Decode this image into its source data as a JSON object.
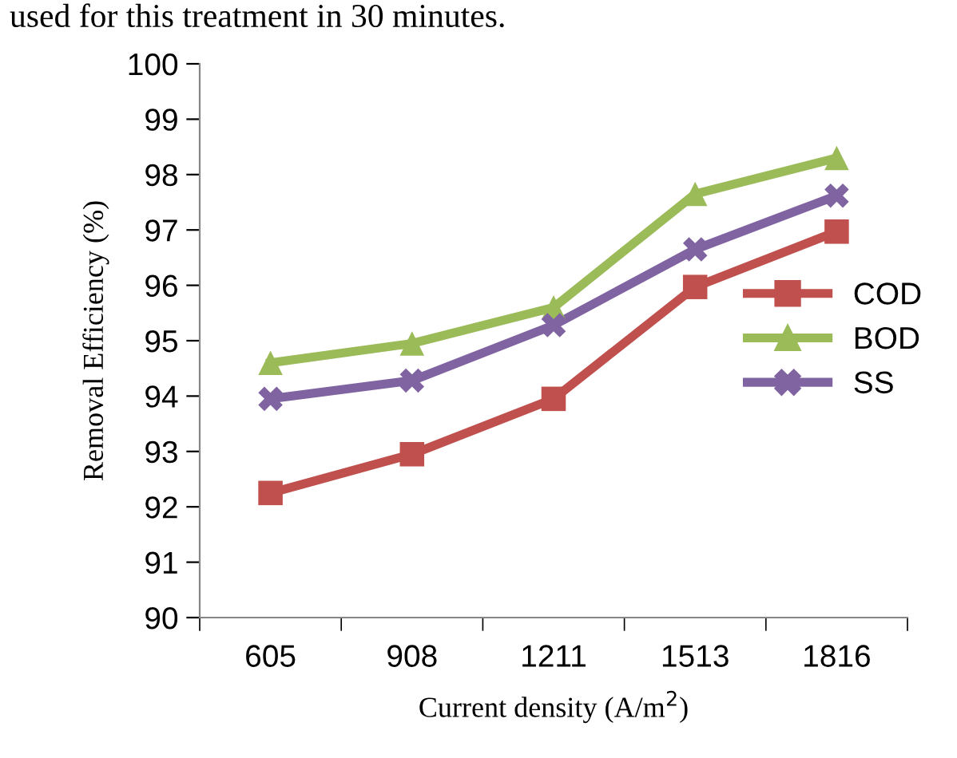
{
  "chart_data": {
    "type": "line",
    "xlabel": "Current density (A/m$^{2}$)",
    "ylabel": "Removal Efficiency (%)",
    "annotations": [
      "used for this treatment in 30 minutes."
    ],
    "categories": [
      "605",
      "908",
      "1211",
      "1513",
      "1816"
    ],
    "series": [
      {
        "name": "COD",
        "color": "#c0504d",
        "marker": "square",
        "values": [
          92.25,
          92.95,
          93.95,
          95.97,
          96.97
        ]
      },
      {
        "name": "BOD",
        "color": "#9bbb59",
        "marker": "triangle",
        "values": [
          94.6,
          94.95,
          95.6,
          97.65,
          98.3
        ]
      },
      {
        "name": "SS",
        "color": "#8064a2",
        "marker": "cross",
        "values": [
          93.95,
          94.28,
          95.28,
          96.65,
          97.62
        ]
      }
    ],
    "ylim": [
      90,
      100
    ],
    "yticks": [
      90,
      91,
      92,
      93,
      94,
      95,
      96,
      97,
      98,
      99,
      100
    ],
    "grid": false,
    "legend": "right",
    "line_style": "solid"
  }
}
